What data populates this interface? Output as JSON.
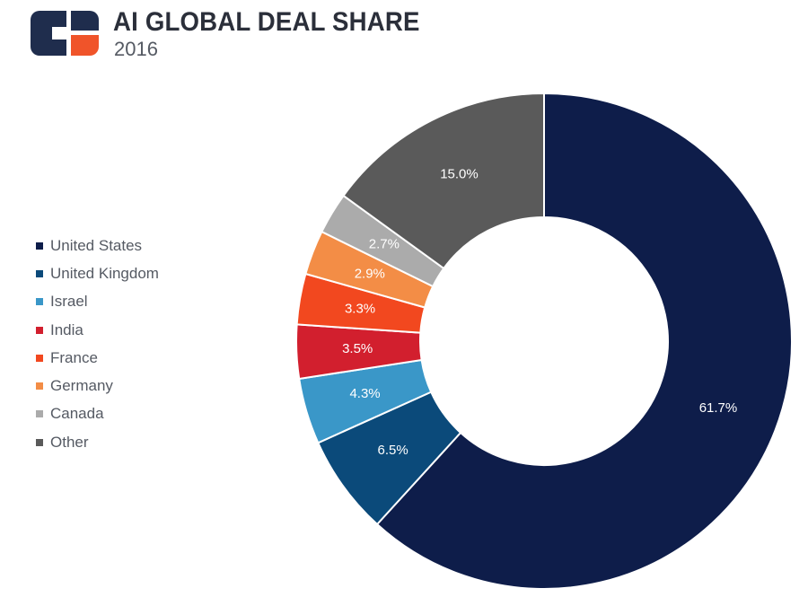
{
  "header": {
    "title": "AI GLOBAL DEAL SHARE",
    "subtitle": "2016"
  },
  "colors": {
    "logo_dark": "#1f2d4d",
    "logo_accent": "#f0542a"
  },
  "chart_data": {
    "type": "pie",
    "variant": "donut",
    "title": "AI GLOBAL DEAL SHARE",
    "subtitle": "2016",
    "legend_position": "left",
    "start_angle_deg": 0,
    "direction": "clockwise",
    "unit": "%",
    "series": [
      {
        "name": "United States",
        "value": 61.7,
        "label": "61.7%",
        "color": "#0e1d4a"
      },
      {
        "name": "United Kingdom",
        "value": 6.5,
        "label": "6.5%",
        "color": "#0b4a7a"
      },
      {
        "name": "Israel",
        "value": 4.3,
        "label": "4.3%",
        "color": "#3a97c8"
      },
      {
        "name": "India",
        "value": 3.5,
        "label": "3.5%",
        "color": "#d21f2e"
      },
      {
        "name": "France",
        "value": 3.3,
        "label": "3.3%",
        "color": "#f2481f"
      },
      {
        "name": "Germany",
        "value": 2.9,
        "label": "2.9%",
        "color": "#f38d46"
      },
      {
        "name": "Canada",
        "value": 2.7,
        "label": "2.7%",
        "color": "#ababab"
      },
      {
        "name": "Other",
        "value": 15.0,
        "label": "15.0%",
        "color": "#5a5a5a"
      }
    ]
  }
}
